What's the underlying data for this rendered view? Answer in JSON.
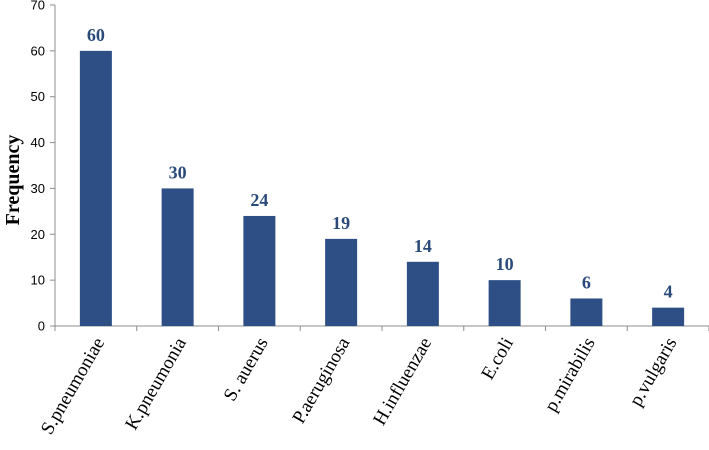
{
  "chart_data": {
    "type": "bar",
    "categories": [
      "S.pneumoniae",
      "K.pneumonia",
      "S. auerus",
      "P.aeruginosa",
      "H.influenzae",
      "E.coli",
      "p.mirabilis",
      "p.vulgaris"
    ],
    "values": [
      60,
      30,
      24,
      19,
      14,
      10,
      6,
      4
    ],
    "title": "",
    "xlabel": "",
    "ylabel": "Frequency",
    "ylim": [
      0,
      70
    ],
    "yticks": [
      0,
      10,
      20,
      30,
      40,
      50,
      60,
      70
    ],
    "grid": false,
    "legend": "none",
    "data_labels": true,
    "bar_color": "#2d4f86",
    "label_color": "#2a4a7a",
    "axis_color": "#8c8c8c"
  }
}
